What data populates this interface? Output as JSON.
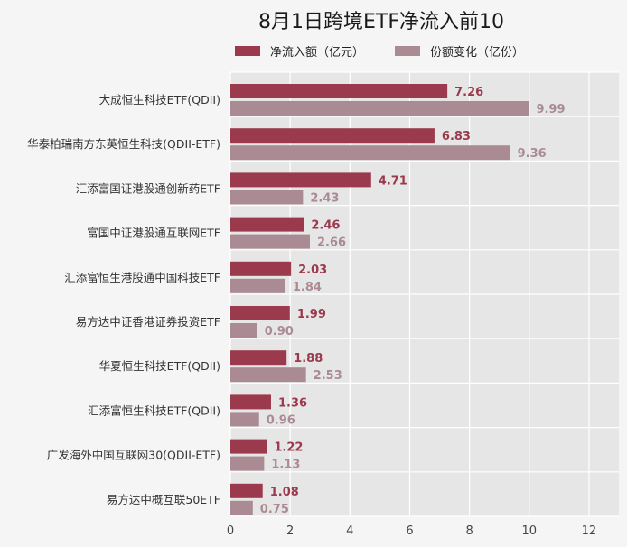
{
  "chart_data": {
    "type": "bar",
    "orientation": "horizontal",
    "title": "8月1日跨境ETF净流入前10",
    "categories": [
      "大成恒生科技ETF(QDII)",
      "华泰柏瑞南方东英恒生科技(QDII-ETF)",
      "汇添富国证港股通创新药ETF",
      "富国中证港股通互联网ETF",
      "汇添富恒生港股通中国科技ETF",
      "易方达中证香港证券投资ETF",
      "华夏恒生科技ETF(QDII)",
      "汇添富恒生科技ETF(QDII)",
      "广发海外中国互联网30(QDII-ETF)",
      "易方达中概互联50ETF"
    ],
    "series": [
      {
        "name": "净流入额（亿元）",
        "color": "#9b3a4c",
        "values": [
          7.26,
          6.83,
          4.71,
          2.46,
          2.03,
          1.99,
          1.88,
          1.36,
          1.22,
          1.08
        ],
        "labels": [
          "7.26",
          "6.83",
          "4.71",
          "2.46",
          "2.03",
          "1.99",
          "1.88",
          "1.36",
          "1.22",
          "1.08"
        ]
      },
      {
        "name": "份额变化（亿份）",
        "color": "#ab8b93",
        "values": [
          9.99,
          9.36,
          2.43,
          2.66,
          1.84,
          0.9,
          2.53,
          0.96,
          1.13,
          0.75
        ],
        "labels": [
          "9.99",
          "9.36",
          "2.43",
          "2.66",
          "1.84",
          "0.90",
          "2.53",
          "0.96",
          "1.13",
          "0.75"
        ]
      }
    ],
    "xlim": [
      0,
      13
    ],
    "xticks": [
      0,
      2,
      4,
      6,
      8,
      10,
      12
    ],
    "xtick_labels": [
      "0",
      "2",
      "4",
      "6",
      "8",
      "10",
      "12"
    ],
    "grid": true,
    "legend_position": "top",
    "plot_background": "#e6e6e6"
  }
}
